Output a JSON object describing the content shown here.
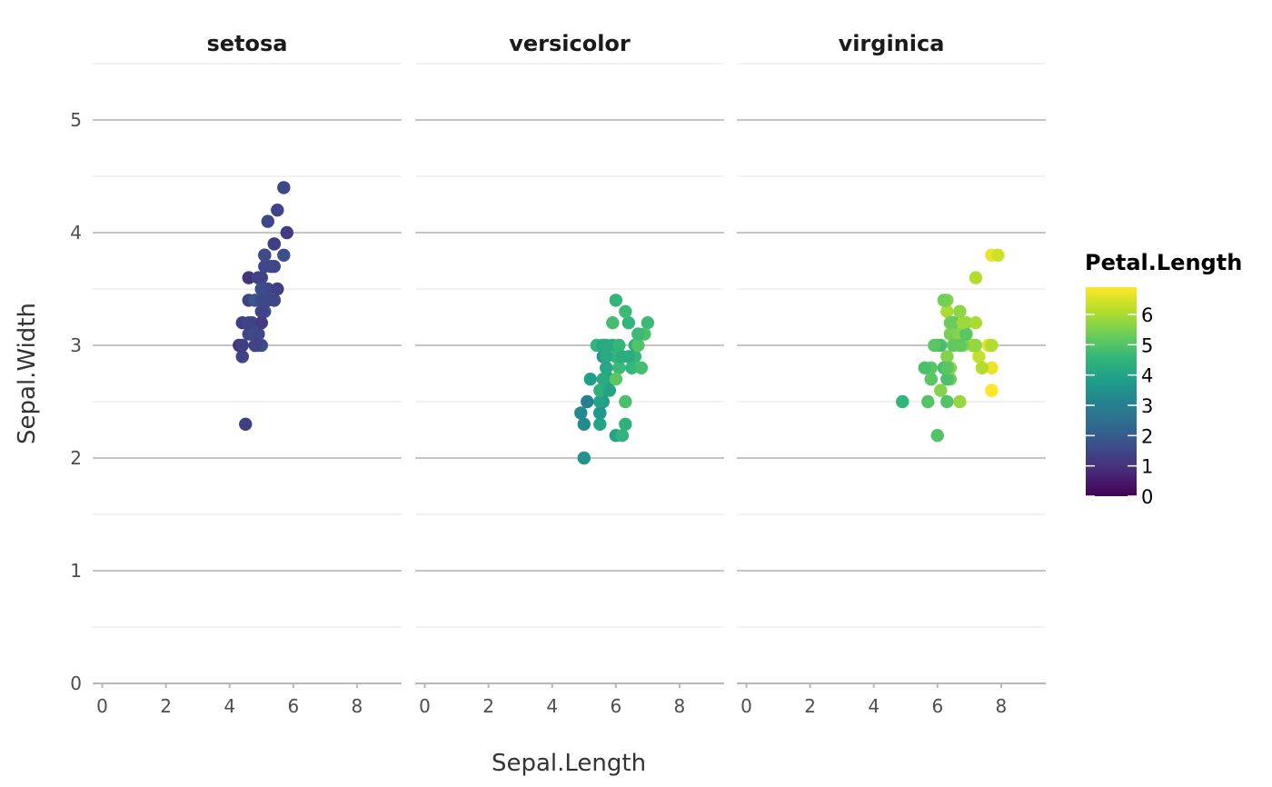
{
  "chart_data": {
    "type": "scatter",
    "facet_by": "Species",
    "panels": [
      "setosa",
      "versicolor",
      "virginica"
    ],
    "xlabel": "Sepal.Length",
    "ylabel": "Sepal.Width",
    "xlim": [
      -0.3,
      9.4
    ],
    "ylim": [
      0,
      5.5
    ],
    "x_ticks": [
      0,
      2,
      4,
      6,
      8
    ],
    "y_ticks": [
      0,
      1,
      2,
      3,
      4,
      5
    ],
    "grid": true,
    "color_by": "Petal.Length",
    "legend": {
      "title": "Petal.Length",
      "position": "right",
      "colormap": "viridis",
      "range": [
        0,
        6.9
      ],
      "ticks": [
        0,
        1,
        2,
        3,
        4,
        5,
        6
      ],
      "colors": [
        "#440154",
        "#482878",
        "#3e4989",
        "#31688e",
        "#26828e",
        "#1f9e89",
        "#35b779",
        "#6ece58",
        "#b5de2b",
        "#fde725"
      ]
    },
    "series": [
      {
        "panel": "setosa",
        "points": [
          {
            "x": 5.1,
            "y": 3.5,
            "c": 1.4
          },
          {
            "x": 4.9,
            "y": 3.0,
            "c": 1.4
          },
          {
            "x": 4.7,
            "y": 3.2,
            "c": 1.3
          },
          {
            "x": 4.6,
            "y": 3.1,
            "c": 1.5
          },
          {
            "x": 5.0,
            "y": 3.6,
            "c": 1.4
          },
          {
            "x": 5.4,
            "y": 3.9,
            "c": 1.7
          },
          {
            "x": 4.6,
            "y": 3.4,
            "c": 1.4
          },
          {
            "x": 5.0,
            "y": 3.4,
            "c": 1.5
          },
          {
            "x": 4.4,
            "y": 2.9,
            "c": 1.4
          },
          {
            "x": 4.9,
            "y": 3.1,
            "c": 1.5
          },
          {
            "x": 5.4,
            "y": 3.7,
            "c": 1.5
          },
          {
            "x": 4.8,
            "y": 3.4,
            "c": 1.6
          },
          {
            "x": 4.8,
            "y": 3.0,
            "c": 1.4
          },
          {
            "x": 4.3,
            "y": 3.0,
            "c": 1.1
          },
          {
            "x": 5.8,
            "y": 4.0,
            "c": 1.2
          },
          {
            "x": 5.7,
            "y": 4.4,
            "c": 1.5
          },
          {
            "x": 5.4,
            "y": 3.9,
            "c": 1.3
          },
          {
            "x": 5.1,
            "y": 3.5,
            "c": 1.4
          },
          {
            "x": 5.7,
            "y": 3.8,
            "c": 1.7
          },
          {
            "x": 5.1,
            "y": 3.8,
            "c": 1.5
          },
          {
            "x": 5.4,
            "y": 3.4,
            "c": 1.7
          },
          {
            "x": 5.1,
            "y": 3.7,
            "c": 1.5
          },
          {
            "x": 4.6,
            "y": 3.6,
            "c": 1.0
          },
          {
            "x": 5.1,
            "y": 3.3,
            "c": 1.7
          },
          {
            "x": 4.8,
            "y": 3.4,
            "c": 1.9
          },
          {
            "x": 5.0,
            "y": 3.0,
            "c": 1.6
          },
          {
            "x": 5.0,
            "y": 3.4,
            "c": 1.6
          },
          {
            "x": 5.2,
            "y": 3.5,
            "c": 1.5
          },
          {
            "x": 5.2,
            "y": 3.4,
            "c": 1.4
          },
          {
            "x": 4.7,
            "y": 3.2,
            "c": 1.6
          },
          {
            "x": 4.8,
            "y": 3.1,
            "c": 1.6
          },
          {
            "x": 5.4,
            "y": 3.4,
            "c": 1.5
          },
          {
            "x": 5.2,
            "y": 4.1,
            "c": 1.5
          },
          {
            "x": 5.5,
            "y": 4.2,
            "c": 1.4
          },
          {
            "x": 4.9,
            "y": 3.1,
            "c": 1.5
          },
          {
            "x": 5.0,
            "y": 3.2,
            "c": 1.2
          },
          {
            "x": 5.5,
            "y": 3.5,
            "c": 1.3
          },
          {
            "x": 4.9,
            "y": 3.6,
            "c": 1.4
          },
          {
            "x": 4.4,
            "y": 3.0,
            "c": 1.3
          },
          {
            "x": 5.1,
            "y": 3.4,
            "c": 1.5
          },
          {
            "x": 5.0,
            "y": 3.5,
            "c": 1.3
          },
          {
            "x": 4.5,
            "y": 2.3,
            "c": 1.3
          },
          {
            "x": 4.4,
            "y": 3.2,
            "c": 1.3
          },
          {
            "x": 5.0,
            "y": 3.5,
            "c": 1.6
          },
          {
            "x": 5.1,
            "y": 3.8,
            "c": 1.9
          },
          {
            "x": 4.8,
            "y": 3.0,
            "c": 1.4
          },
          {
            "x": 5.1,
            "y": 3.8,
            "c": 1.6
          },
          {
            "x": 4.6,
            "y": 3.2,
            "c": 1.4
          },
          {
            "x": 5.3,
            "y": 3.7,
            "c": 1.5
          },
          {
            "x": 5.0,
            "y": 3.3,
            "c": 1.4
          }
        ]
      },
      {
        "panel": "versicolor",
        "points": [
          {
            "x": 7.0,
            "y": 3.2,
            "c": 4.7
          },
          {
            "x": 6.4,
            "y": 3.2,
            "c": 4.5
          },
          {
            "x": 6.9,
            "y": 3.1,
            "c": 4.9
          },
          {
            "x": 5.5,
            "y": 2.3,
            "c": 4.0
          },
          {
            "x": 6.5,
            "y": 2.8,
            "c": 4.6
          },
          {
            "x": 5.7,
            "y": 2.8,
            "c": 4.5
          },
          {
            "x": 6.3,
            "y": 3.3,
            "c": 4.7
          },
          {
            "x": 4.9,
            "y": 2.4,
            "c": 3.3
          },
          {
            "x": 6.6,
            "y": 2.9,
            "c": 4.6
          },
          {
            "x": 5.2,
            "y": 2.7,
            "c": 3.9
          },
          {
            "x": 5.0,
            "y": 2.0,
            "c": 3.5
          },
          {
            "x": 5.9,
            "y": 3.0,
            "c": 4.2
          },
          {
            "x": 6.0,
            "y": 2.2,
            "c": 4.0
          },
          {
            "x": 6.1,
            "y": 2.9,
            "c": 4.7
          },
          {
            "x": 5.6,
            "y": 2.9,
            "c": 3.6
          },
          {
            "x": 6.7,
            "y": 3.1,
            "c": 4.4
          },
          {
            "x": 5.6,
            "y": 3.0,
            "c": 4.5
          },
          {
            "x": 5.8,
            "y": 2.7,
            "c": 4.1
          },
          {
            "x": 6.2,
            "y": 2.2,
            "c": 4.5
          },
          {
            "x": 5.6,
            "y": 2.5,
            "c": 3.9
          },
          {
            "x": 5.9,
            "y": 3.2,
            "c": 4.8
          },
          {
            "x": 6.1,
            "y": 2.8,
            "c": 4.0
          },
          {
            "x": 6.3,
            "y": 2.5,
            "c": 4.9
          },
          {
            "x": 6.1,
            "y": 2.8,
            "c": 4.7
          },
          {
            "x": 6.4,
            "y": 2.9,
            "c": 4.3
          },
          {
            "x": 6.6,
            "y": 3.0,
            "c": 4.4
          },
          {
            "x": 6.8,
            "y": 2.8,
            "c": 4.8
          },
          {
            "x": 6.7,
            "y": 3.0,
            "c": 5.0
          },
          {
            "x": 6.0,
            "y": 2.9,
            "c": 4.5
          },
          {
            "x": 5.7,
            "y": 2.6,
            "c": 3.5
          },
          {
            "x": 5.5,
            "y": 2.4,
            "c": 3.8
          },
          {
            "x": 5.5,
            "y": 2.4,
            "c": 3.7
          },
          {
            "x": 5.8,
            "y": 2.7,
            "c": 3.9
          },
          {
            "x": 6.0,
            "y": 2.7,
            "c": 5.1
          },
          {
            "x": 5.4,
            "y": 3.0,
            "c": 4.5
          },
          {
            "x": 6.0,
            "y": 3.4,
            "c": 4.5
          },
          {
            "x": 6.7,
            "y": 3.1,
            "c": 4.7
          },
          {
            "x": 6.3,
            "y": 2.3,
            "c": 4.4
          },
          {
            "x": 5.6,
            "y": 3.0,
            "c": 4.1
          },
          {
            "x": 5.5,
            "y": 2.5,
            "c": 4.0
          },
          {
            "x": 5.5,
            "y": 2.6,
            "c": 4.4
          },
          {
            "x": 6.1,
            "y": 3.0,
            "c": 4.6
          },
          {
            "x": 5.8,
            "y": 2.6,
            "c": 4.0
          },
          {
            "x": 5.0,
            "y": 2.3,
            "c": 3.3
          },
          {
            "x": 5.6,
            "y": 2.7,
            "c": 4.2
          },
          {
            "x": 5.7,
            "y": 3.0,
            "c": 4.2
          },
          {
            "x": 5.7,
            "y": 2.9,
            "c": 4.2
          },
          {
            "x": 6.2,
            "y": 2.9,
            "c": 4.3
          },
          {
            "x": 5.1,
            "y": 2.5,
            "c": 3.0
          },
          {
            "x": 5.7,
            "y": 2.8,
            "c": 4.1
          }
        ]
      },
      {
        "panel": "virginica",
        "points": [
          {
            "x": 6.3,
            "y": 3.3,
            "c": 6.0
          },
          {
            "x": 5.8,
            "y": 2.7,
            "c": 5.1
          },
          {
            "x": 7.1,
            "y": 3.0,
            "c": 5.9
          },
          {
            "x": 6.3,
            "y": 2.9,
            "c": 5.6
          },
          {
            "x": 6.5,
            "y": 3.0,
            "c": 5.8
          },
          {
            "x": 7.6,
            "y": 3.0,
            "c": 6.6
          },
          {
            "x": 4.9,
            "y": 2.5,
            "c": 4.5
          },
          {
            "x": 7.3,
            "y": 2.9,
            "c": 6.3
          },
          {
            "x": 6.7,
            "y": 2.5,
            "c": 5.8
          },
          {
            "x": 7.2,
            "y": 3.6,
            "c": 6.1
          },
          {
            "x": 6.5,
            "y": 3.2,
            "c": 5.1
          },
          {
            "x": 6.4,
            "y": 2.7,
            "c": 5.3
          },
          {
            "x": 6.8,
            "y": 3.0,
            "c": 5.5
          },
          {
            "x": 5.7,
            "y": 2.5,
            "c": 5.0
          },
          {
            "x": 5.8,
            "y": 2.8,
            "c": 5.1
          },
          {
            "x": 6.4,
            "y": 3.2,
            "c": 5.3
          },
          {
            "x": 6.5,
            "y": 3.0,
            "c": 5.5
          },
          {
            "x": 7.7,
            "y": 3.8,
            "c": 6.7
          },
          {
            "x": 7.7,
            "y": 2.6,
            "c": 6.9
          },
          {
            "x": 6.0,
            "y": 2.2,
            "c": 5.0
          },
          {
            "x": 6.9,
            "y": 3.2,
            "c": 5.7
          },
          {
            "x": 5.6,
            "y": 2.8,
            "c": 4.9
          },
          {
            "x": 7.7,
            "y": 2.8,
            "c": 6.7
          },
          {
            "x": 6.3,
            "y": 2.7,
            "c": 4.9
          },
          {
            "x": 6.7,
            "y": 3.3,
            "c": 5.7
          },
          {
            "x": 7.2,
            "y": 3.2,
            "c": 6.0
          },
          {
            "x": 6.2,
            "y": 2.8,
            "c": 4.8
          },
          {
            "x": 6.1,
            "y": 3.0,
            "c": 4.9
          },
          {
            "x": 6.4,
            "y": 2.8,
            "c": 5.6
          },
          {
            "x": 7.2,
            "y": 3.0,
            "c": 5.8
          },
          {
            "x": 7.4,
            "y": 2.8,
            "c": 6.1
          },
          {
            "x": 7.9,
            "y": 3.8,
            "c": 6.4
          },
          {
            "x": 6.4,
            "y": 2.8,
            "c": 5.6
          },
          {
            "x": 6.3,
            "y": 2.8,
            "c": 5.1
          },
          {
            "x": 6.1,
            "y": 2.6,
            "c": 5.6
          },
          {
            "x": 7.7,
            "y": 3.0,
            "c": 6.1
          },
          {
            "x": 6.3,
            "y": 3.4,
            "c": 5.6
          },
          {
            "x": 6.4,
            "y": 3.1,
            "c": 5.5
          },
          {
            "x": 6.0,
            "y": 3.0,
            "c": 4.8
          },
          {
            "x": 6.9,
            "y": 3.1,
            "c": 5.4
          },
          {
            "x": 6.7,
            "y": 3.1,
            "c": 5.6
          },
          {
            "x": 6.9,
            "y": 3.1,
            "c": 5.1
          },
          {
            "x": 5.8,
            "y": 2.7,
            "c": 5.1
          },
          {
            "x": 6.8,
            "y": 3.2,
            "c": 5.9
          },
          {
            "x": 6.7,
            "y": 3.3,
            "c": 5.7
          },
          {
            "x": 6.7,
            "y": 3.0,
            "c": 5.2
          },
          {
            "x": 6.3,
            "y": 2.5,
            "c": 5.0
          },
          {
            "x": 6.5,
            "y": 3.0,
            "c": 5.2
          },
          {
            "x": 6.2,
            "y": 3.4,
            "c": 5.4
          },
          {
            "x": 5.9,
            "y": 3.0,
            "c": 5.1
          }
        ]
      }
    ]
  }
}
